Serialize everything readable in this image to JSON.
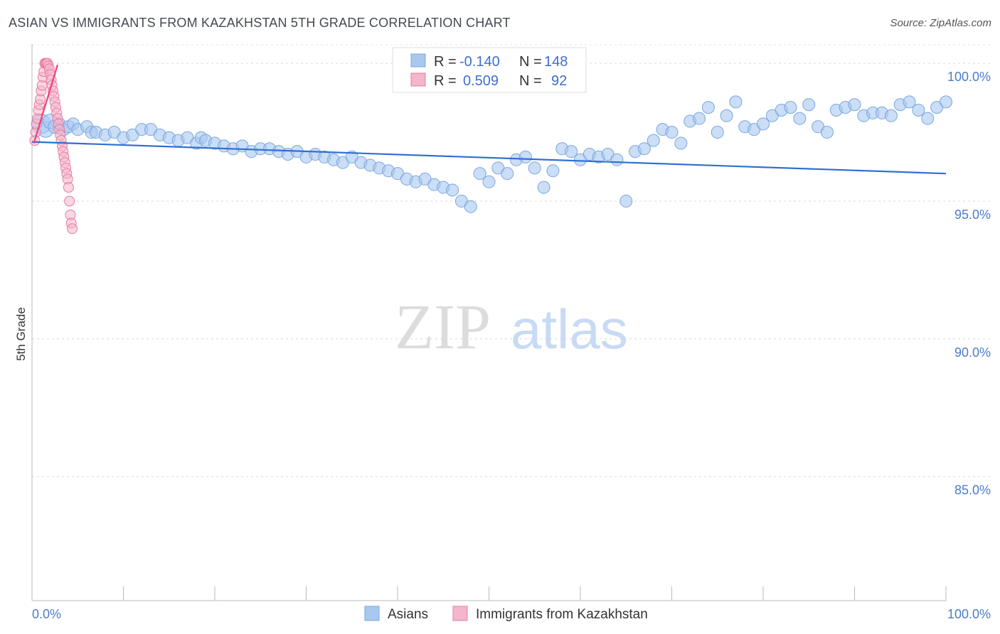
{
  "title": "ASIAN VS IMMIGRANTS FROM KAZAKHSTAN 5TH GRADE CORRELATION CHART",
  "source": "Source: ZipAtlas.com",
  "watermark": {
    "zip": "ZIP",
    "atlas": "atlas"
  },
  "chart_data": {
    "type": "scatter",
    "ylabel": "5th Grade",
    "xlim": [
      0,
      100
    ],
    "ylim": [
      80.5,
      100.7
    ],
    "x_tick_labels": [
      {
        "value": 0,
        "label": "0.0%"
      },
      {
        "value": 100,
        "label": "100.0%"
      }
    ],
    "y_tick_labels": [
      {
        "value": 100,
        "label": "100.0%"
      },
      {
        "value": 95,
        "label": "95.0%"
      },
      {
        "value": 90,
        "label": "90.0%"
      },
      {
        "value": 85,
        "label": "85.0%"
      }
    ],
    "x_minor_ticks": [
      0,
      10,
      20,
      30,
      40,
      50,
      60,
      70,
      80,
      90,
      100
    ],
    "grid": true,
    "legend_position": "bottom-center",
    "stats": [
      {
        "r_label": "R =",
        "r_value": "-0.140",
        "n_label": "N =",
        "n_value": "148"
      },
      {
        "r_label": "R =",
        "r_value": "0.509",
        "n_label": "N =",
        "n_value": "92"
      }
    ],
    "series": [
      {
        "name": "Asians",
        "color": "#a8c8f0",
        "stroke": "#7aa6e0",
        "trend_color": "#2f6fd0",
        "trend": [
          [
            0,
            97.15
          ],
          [
            100,
            96.0
          ]
        ],
        "points": [
          [
            1.0,
            97.8,
            1.6
          ],
          [
            1.5,
            97.6,
            1.3
          ],
          [
            2.0,
            97.9,
            1.2
          ],
          [
            2.5,
            97.7,
            1.1
          ],
          [
            3.0,
            97.8,
            1.0
          ],
          [
            3.5,
            97.6,
            1.0
          ],
          [
            4.0,
            97.7,
            1.0
          ],
          [
            4.5,
            97.8,
            1.0
          ],
          [
            5.0,
            97.6,
            1.0
          ],
          [
            6.0,
            97.7,
            1.0
          ],
          [
            6.5,
            97.5,
            1.0
          ],
          [
            7.0,
            97.5,
            1.0
          ],
          [
            8.0,
            97.4,
            1.0
          ],
          [
            9.0,
            97.5,
            1.0
          ],
          [
            10.0,
            97.3,
            1.0
          ],
          [
            11.0,
            97.4,
            1.0
          ],
          [
            12.0,
            97.6,
            1.0
          ],
          [
            13.0,
            97.6,
            1.0
          ],
          [
            14.0,
            97.4,
            1.0
          ],
          [
            15.0,
            97.3,
            1.0
          ],
          [
            16.0,
            97.2,
            1.0
          ],
          [
            17.0,
            97.3,
            1.0
          ],
          [
            18.0,
            97.1,
            1.0
          ],
          [
            18.5,
            97.3,
            1.0
          ],
          [
            19.0,
            97.2,
            1.0
          ],
          [
            20.0,
            97.1,
            1.0
          ],
          [
            21.0,
            97.0,
            1.0
          ],
          [
            22.0,
            96.9,
            1.0
          ],
          [
            23.0,
            97.0,
            1.0
          ],
          [
            24.0,
            96.8,
            1.0
          ],
          [
            25.0,
            96.9,
            1.0
          ],
          [
            26.0,
            96.9,
            1.0
          ],
          [
            27.0,
            96.8,
            1.0
          ],
          [
            28.0,
            96.7,
            1.0
          ],
          [
            29.0,
            96.8,
            1.0
          ],
          [
            30.0,
            96.6,
            1.0
          ],
          [
            31.0,
            96.7,
            1.0
          ],
          [
            32.0,
            96.6,
            1.0
          ],
          [
            33.0,
            96.5,
            1.0
          ],
          [
            34.0,
            96.4,
            1.0
          ],
          [
            35.0,
            96.6,
            1.0
          ],
          [
            36.0,
            96.4,
            1.0
          ],
          [
            37.0,
            96.3,
            1.0
          ],
          [
            38.0,
            96.2,
            1.0
          ],
          [
            39.0,
            96.1,
            1.0
          ],
          [
            40.0,
            96.0,
            1.0
          ],
          [
            41.0,
            95.8,
            1.0
          ],
          [
            42.0,
            95.7,
            1.0
          ],
          [
            43.0,
            95.8,
            1.0
          ],
          [
            44.0,
            95.6,
            1.0
          ],
          [
            45.0,
            95.5,
            1.0
          ],
          [
            46.0,
            95.4,
            1.0
          ],
          [
            47.0,
            95.0,
            1.0
          ],
          [
            48.0,
            94.8,
            1.0
          ],
          [
            49.0,
            96.0,
            1.0
          ],
          [
            50.0,
            95.7,
            1.0
          ],
          [
            51.0,
            96.2,
            1.0
          ],
          [
            52.0,
            96.0,
            1.0
          ],
          [
            53.0,
            96.5,
            1.0
          ],
          [
            54.0,
            96.6,
            1.0
          ],
          [
            55.0,
            96.2,
            1.0
          ],
          [
            56.0,
            95.5,
            1.0
          ],
          [
            57.0,
            96.1,
            1.0
          ],
          [
            58.0,
            96.9,
            1.0
          ],
          [
            59.0,
            96.8,
            1.0
          ],
          [
            60.0,
            96.5,
            1.0
          ],
          [
            61.0,
            96.7,
            1.0
          ],
          [
            62.0,
            96.6,
            1.0
          ],
          [
            63.0,
            96.7,
            1.0
          ],
          [
            64.0,
            96.5,
            1.0
          ],
          [
            65.0,
            95.0,
            1.0
          ],
          [
            66.0,
            96.8,
            1.0
          ],
          [
            67.0,
            96.9,
            1.0
          ],
          [
            68.0,
            97.2,
            1.0
          ],
          [
            69.0,
            97.6,
            1.0
          ],
          [
            70.0,
            97.5,
            1.0
          ],
          [
            71.0,
            97.1,
            1.0
          ],
          [
            72.0,
            97.9,
            1.0
          ],
          [
            73.0,
            98.0,
            1.0
          ],
          [
            74.0,
            98.4,
            1.0
          ],
          [
            75.0,
            97.5,
            1.0
          ],
          [
            76.0,
            98.1,
            1.0
          ],
          [
            77.0,
            98.6,
            1.0
          ],
          [
            78.0,
            97.7,
            1.0
          ],
          [
            79.0,
            97.6,
            1.0
          ],
          [
            80.0,
            97.8,
            1.0
          ],
          [
            81.0,
            98.1,
            1.0
          ],
          [
            82.0,
            98.3,
            1.0
          ],
          [
            83.0,
            98.4,
            1.0
          ],
          [
            84.0,
            98.0,
            1.0
          ],
          [
            85.0,
            98.5,
            1.0
          ],
          [
            86.0,
            97.7,
            1.0
          ],
          [
            87.0,
            97.5,
            1.0
          ],
          [
            88.0,
            98.3,
            1.0
          ],
          [
            89.0,
            98.4,
            1.0
          ],
          [
            90.0,
            98.5,
            1.0
          ],
          [
            91.0,
            98.1,
            1.0
          ],
          [
            92.0,
            98.2,
            1.0
          ],
          [
            93.0,
            98.2,
            1.0
          ],
          [
            94.0,
            98.1,
            1.0
          ],
          [
            95.0,
            98.5,
            1.0
          ],
          [
            96.0,
            98.6,
            1.0
          ],
          [
            97.0,
            98.3,
            1.0
          ],
          [
            98.0,
            98.0,
            1.0
          ],
          [
            99.0,
            98.4,
            1.0
          ],
          [
            100.0,
            98.6,
            1.0
          ]
        ]
      },
      {
        "name": "Immigrants from Kazakhstan",
        "color": "#f4b6cc",
        "stroke": "#e97aa3",
        "trend_color": "#e8457a",
        "trend": [
          [
            0.2,
            97.1
          ],
          [
            2.8,
            99.95
          ]
        ],
        "points": [
          [
            0.3,
            97.2
          ],
          [
            0.4,
            97.5
          ],
          [
            0.5,
            97.8
          ],
          [
            0.6,
            98.0
          ],
          [
            0.7,
            98.3
          ],
          [
            0.8,
            98.5
          ],
          [
            0.9,
            98.7
          ],
          [
            1.0,
            99.0
          ],
          [
            1.1,
            99.2
          ],
          [
            1.2,
            99.5
          ],
          [
            1.3,
            99.7
          ],
          [
            1.4,
            100.0
          ],
          [
            1.5,
            100.0
          ],
          [
            1.6,
            100.0
          ],
          [
            1.7,
            100.0
          ],
          [
            1.8,
            99.9
          ],
          [
            1.9,
            99.8
          ],
          [
            2.0,
            99.6
          ],
          [
            2.1,
            99.4
          ],
          [
            2.2,
            99.2
          ],
          [
            2.3,
            99.0
          ],
          [
            2.4,
            98.8
          ],
          [
            2.5,
            98.6
          ],
          [
            2.6,
            98.4
          ],
          [
            2.7,
            98.2
          ],
          [
            2.8,
            98.0
          ],
          [
            2.9,
            97.8
          ],
          [
            3.0,
            97.6
          ],
          [
            3.1,
            97.4
          ],
          [
            3.2,
            97.2
          ],
          [
            3.3,
            97.0
          ],
          [
            3.4,
            96.8
          ],
          [
            3.5,
            96.6
          ],
          [
            3.6,
            96.4
          ],
          [
            3.7,
            96.2
          ],
          [
            3.8,
            96.0
          ],
          [
            3.9,
            95.8
          ],
          [
            4.0,
            95.5
          ],
          [
            4.1,
            95.0
          ],
          [
            4.2,
            94.5
          ],
          [
            4.3,
            94.2
          ],
          [
            4.4,
            94.0
          ]
        ]
      }
    ]
  }
}
